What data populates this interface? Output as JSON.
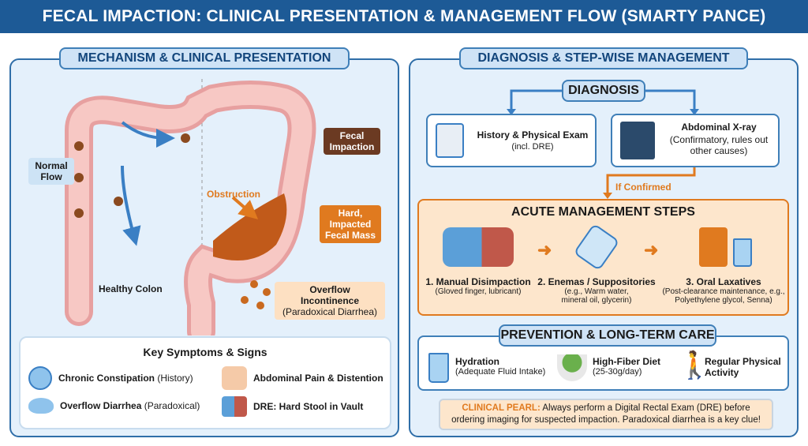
{
  "title": "FECAL IMPACTION: CLINICAL PRESENTATION & MANAGEMENT FLOW (SMARTY PANCE)",
  "left": {
    "header": "MECHANISM & CLINICAL PRESENTATION",
    "labels": {
      "normal_flow": "Normal Flow",
      "fecal_impaction": "Fecal Impaction",
      "obstruction": "Obstruction",
      "hard_mass": "Hard, Impacted Fecal Mass",
      "healthy_colon": "Healthy Colon",
      "overflow_title": "Overflow Incontinence",
      "overflow_sub": "(Paradoxical Diarrhea)"
    },
    "symptoms": {
      "title": "Key Symptoms & Signs",
      "items": [
        {
          "bold": "Chronic Constipation",
          "normal": "(History)",
          "icon": "sad-face-icon"
        },
        {
          "bold": "Abdominal Pain & Distention",
          "normal": "",
          "icon": "abdomen-icon"
        },
        {
          "bold": "Overflow Diarrhea",
          "normal": "(Paradoxical)",
          "icon": "water-drop-icon"
        },
        {
          "bold": "DRE: Hard Stool in Vault",
          "normal": "",
          "icon": "dre-icon"
        }
      ]
    }
  },
  "right": {
    "header": "DIAGNOSIS & STEP-WISE MANAGEMENT",
    "diagnosis": {
      "title": "DIAGNOSIS",
      "hp_title": "History & Physical Exam",
      "hp_sub": "(incl. DRE)",
      "xray_title": "Abdominal X-ray",
      "xray_sub": "(Confirmatory, rules out other causes)",
      "confirmed": "If Confirmed"
    },
    "acute": {
      "title": "ACUTE MANAGEMENT STEPS",
      "steps": [
        {
          "title": "1. Manual Disimpaction",
          "sub": "(Gloved finger, lubricant)"
        },
        {
          "title": "2. Enemas / Suppositories",
          "sub": "(e.g., Warm water, mineral oil, glycerin)"
        },
        {
          "title": "3. Oral Laxatives",
          "sub": "(Post-clearance maintenance, e.g., Polyethylene glycol, Senna)"
        }
      ]
    },
    "prevention": {
      "title": "PREVENTION & LONG-TERM CARE",
      "items": [
        {
          "title": "Hydration",
          "sub": "(Adequate Fluid Intake)"
        },
        {
          "title": "High-Fiber Diet",
          "sub": "(25-30g/day)"
        },
        {
          "title": "Regular Physical Activity",
          "sub": ""
        }
      ]
    },
    "pearl": {
      "label": "CLINICAL PEARL:",
      "text": "Always perform a Digital Rectal Exam (DRE) before ordering imaging for suspected impaction. Paradoxical diarrhea is a key clue!"
    }
  },
  "colors": {
    "title_bg": "#1d5a96",
    "panel_bg": "#e4f0fb",
    "accent_orange": "#e07a1f",
    "impaction_brown": "#6b3a22"
  }
}
